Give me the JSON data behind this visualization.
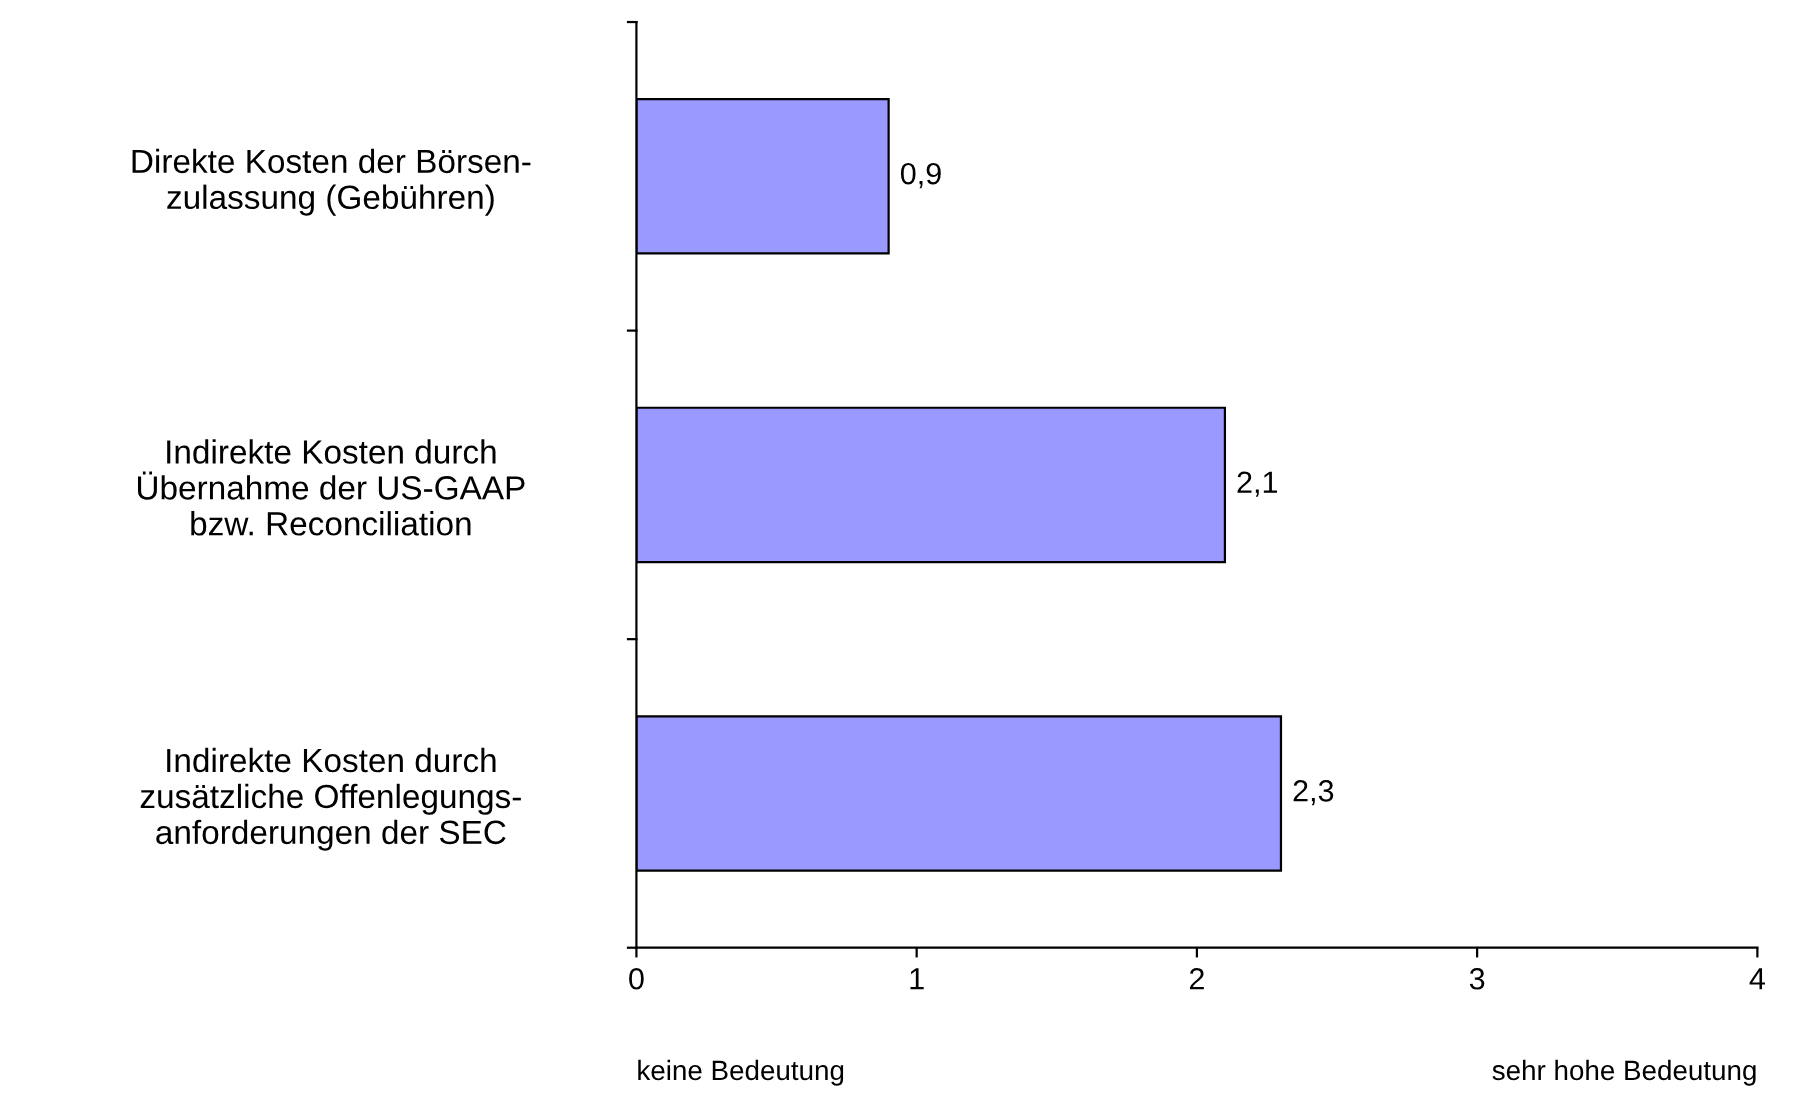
{
  "chart_data": {
    "type": "bar",
    "orientation": "horizontal",
    "categories": [
      "Direkte Kosten der Börsen-\nzulassung (Gebühren)",
      "Indirekte Kosten durch\nÜbernahme der US-GAAP\nbzw. Reconciliation",
      "Indirekte Kosten durch\nzusätzliche Offenlegungs-\nanforderungen der SEC"
    ],
    "values": [
      0.9,
      2.1,
      2.3
    ],
    "value_labels": [
      "0,9",
      "2,1",
      "2,3"
    ],
    "color": "#9999ff",
    "xlim": [
      0,
      4
    ],
    "xticks": [
      0,
      1,
      2,
      3,
      4
    ],
    "grid": false,
    "legend": false,
    "annotations": [
      "keine Bedeutung",
      "sehr hohe Bedeutung"
    ]
  }
}
